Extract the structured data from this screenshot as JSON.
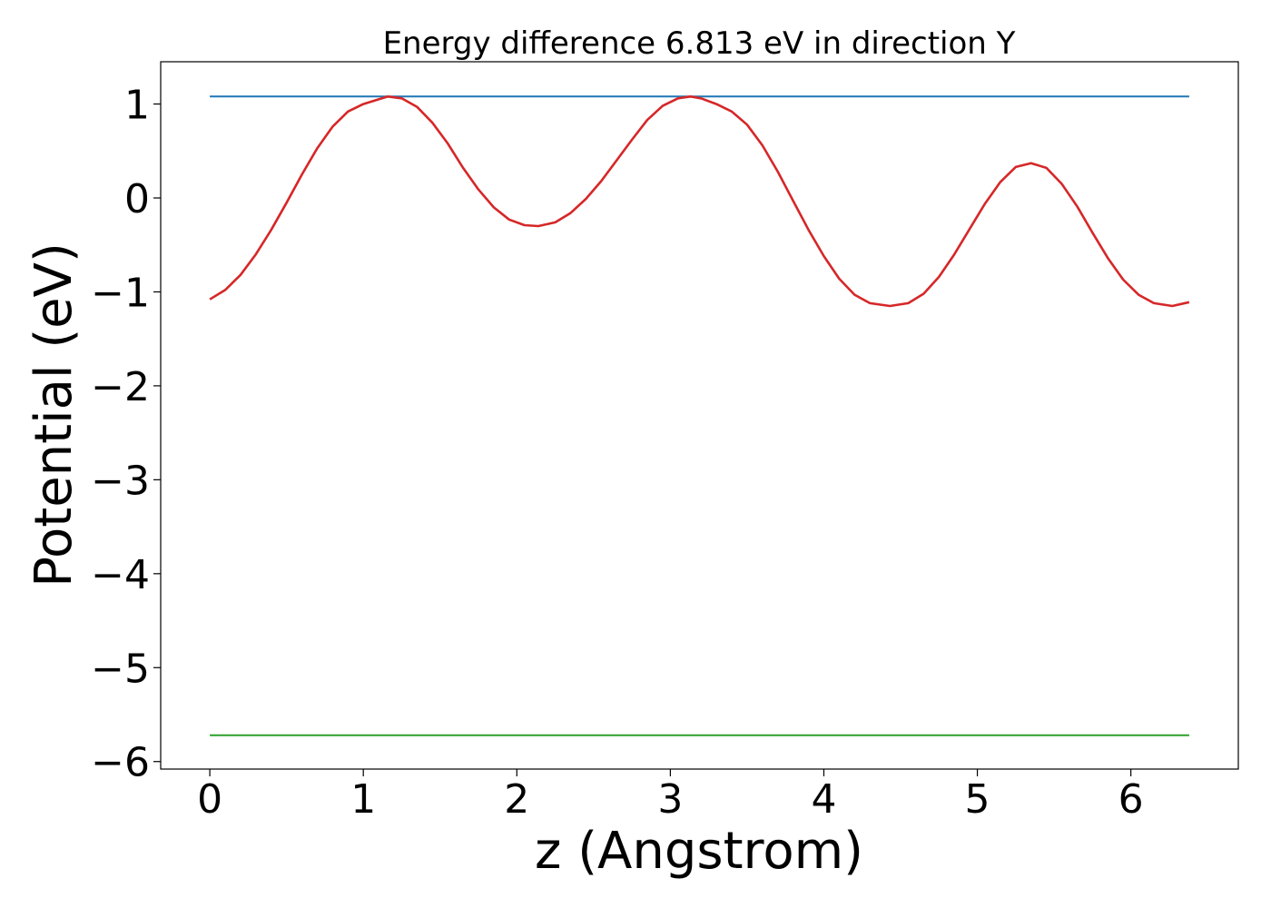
{
  "chart_data": {
    "type": "line",
    "title": "Energy difference 6.813 eV in direction Y",
    "xlabel": "z (Angstrom)",
    "ylabel": "Potential (eV)",
    "xlim": [
      -0.32,
      6.7
    ],
    "ylim": [
      -6.08,
      1.45
    ],
    "xticks": [
      0,
      1,
      2,
      3,
      4,
      5,
      6
    ],
    "yticks": [
      1,
      0,
      -1,
      -2,
      -3,
      -4,
      -5,
      -6
    ],
    "xtick_labels": [
      "0",
      "1",
      "2",
      "3",
      "4",
      "5",
      "6"
    ],
    "ytick_labels": [
      "1",
      "0",
      "−1",
      "−2",
      "−3",
      "−4",
      "−5",
      "−6"
    ],
    "grid": false,
    "series": [
      {
        "color": "#1f77b4",
        "x": [
          0,
          6.38
        ],
        "y": [
          1.08,
          1.08
        ]
      },
      {
        "color": "#d62728",
        "x": [
          0,
          0.1,
          0.2,
          0.3,
          0.4,
          0.5,
          0.6,
          0.7,
          0.8,
          0.9,
          1.0,
          1.1,
          1.16,
          1.25,
          1.35,
          1.45,
          1.55,
          1.65,
          1.75,
          1.85,
          1.95,
          2.05,
          2.14,
          2.25,
          2.35,
          2.45,
          2.55,
          2.65,
          2.75,
          2.85,
          2.95,
          3.05,
          3.13,
          3.2,
          3.3,
          3.4,
          3.5,
          3.6,
          3.7,
          3.8,
          3.9,
          4.0,
          4.1,
          4.2,
          4.3,
          4.43,
          4.55,
          4.65,
          4.75,
          4.85,
          4.95,
          5.05,
          5.15,
          5.25,
          5.35,
          5.45,
          5.55,
          5.65,
          5.75,
          5.85,
          5.95,
          6.05,
          6.15,
          6.27,
          6.38
        ],
        "y": [
          -1.08,
          -0.98,
          -0.82,
          -0.6,
          -0.34,
          -0.05,
          0.25,
          0.53,
          0.76,
          0.92,
          1.0,
          1.05,
          1.08,
          1.06,
          0.97,
          0.8,
          0.58,
          0.32,
          0.09,
          -0.1,
          -0.23,
          -0.29,
          -0.3,
          -0.26,
          -0.16,
          -0.01,
          0.18,
          0.4,
          0.62,
          0.83,
          0.98,
          1.06,
          1.08,
          1.06,
          1.0,
          0.92,
          0.78,
          0.56,
          0.28,
          -0.03,
          -0.34,
          -0.62,
          -0.86,
          -1.03,
          -1.12,
          -1.15,
          -1.12,
          -1.02,
          -0.84,
          -0.6,
          -0.33,
          -0.06,
          0.17,
          0.33,
          0.37,
          0.32,
          0.15,
          -0.09,
          -0.37,
          -0.64,
          -0.87,
          -1.03,
          -1.12,
          -1.15,
          -1.11
        ]
      },
      {
        "color": "#2ca02c",
        "x": [
          0,
          6.38
        ],
        "y": [
          -5.72,
          -5.72
        ]
      }
    ]
  }
}
